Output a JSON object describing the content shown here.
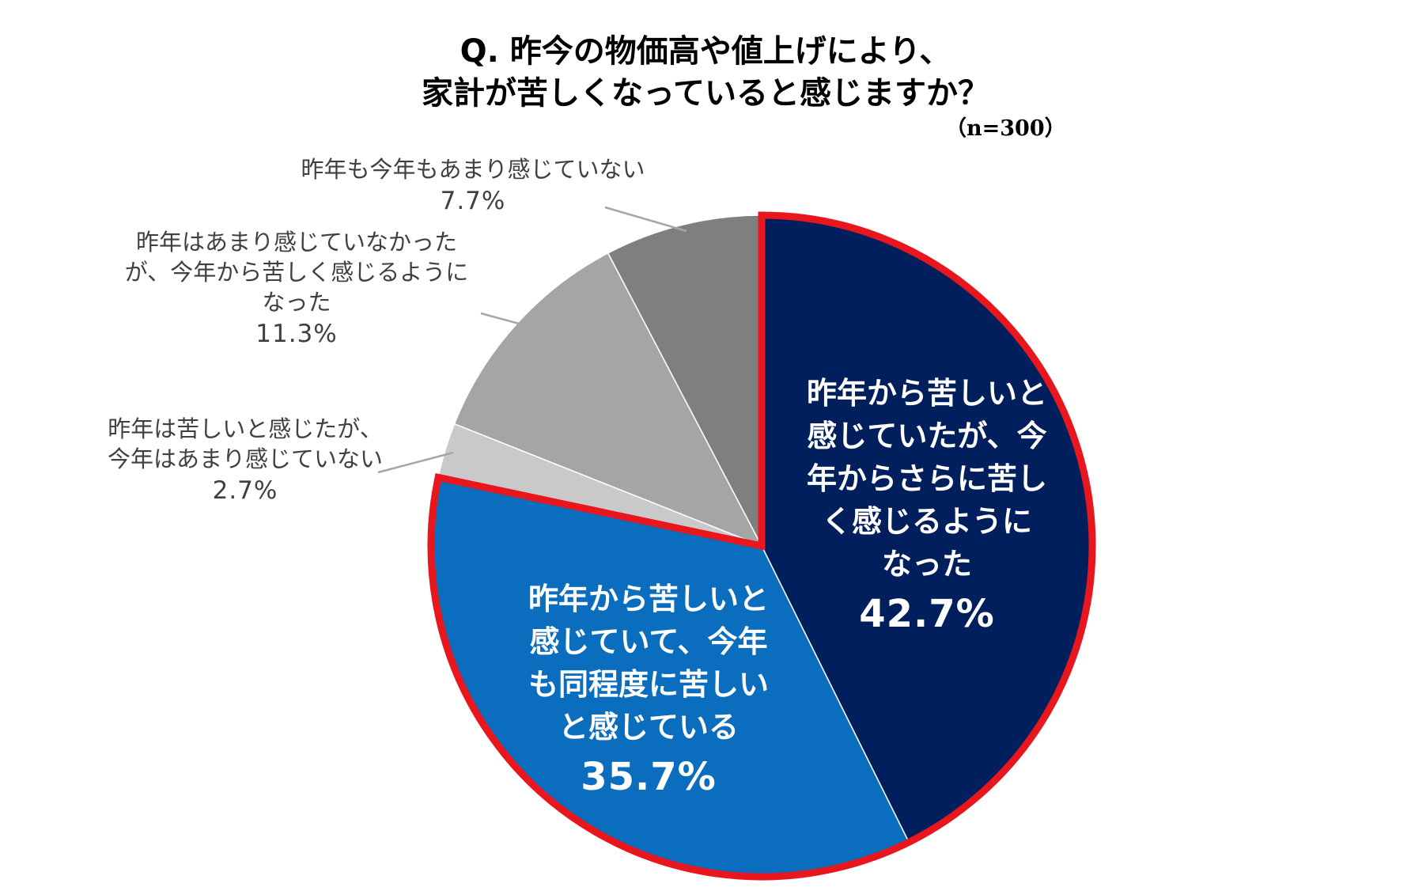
{
  "title": {
    "line1": "Q. 昨今の物価高や値上げにより、",
    "line2": "家計が苦しくなっていると感じますか？",
    "sample": "（n=300）"
  },
  "chart_data": {
    "type": "pie",
    "title": "Q. 昨今の物価高や値上げにより、家計が苦しくなっていると感じますか？",
    "slices": [
      {
        "label_lines": [
          "昨年から苦しいと",
          "感じていたが、今",
          "年からさらに苦し",
          "く感じるように",
          "なった"
        ],
        "value": 42.7,
        "value_label": "42.7%",
        "color": "#001f5c",
        "highlighted": true
      },
      {
        "label_lines": [
          "昨年から苦しいと",
          "感じていて、今年",
          "も同程度に苦しい",
          "と感じている"
        ],
        "value": 35.7,
        "value_label": "35.7%",
        "color": "#0a6dbd",
        "highlighted": true
      },
      {
        "label_lines": [
          "昨年は苦しいと感じたが、",
          "今年はあまり感じていない"
        ],
        "value": 2.7,
        "value_label": "2.7%",
        "color": "#c9c9c9",
        "highlighted": false
      },
      {
        "label_lines": [
          "昨年はあまり感じていなかった",
          "が、今年から苦しく感じるように",
          "なった"
        ],
        "value": 11.3,
        "value_label": "11.3%",
        "color": "#a5a5a5",
        "highlighted": false
      },
      {
        "label_lines": [
          "昨年も今年もあまり感じていない"
        ],
        "value": 7.7,
        "value_label": "7.7%",
        "color": "#7f7f7f",
        "highlighted": false
      }
    ],
    "start_angle": "12 o'clock",
    "direction": "clockwise",
    "highlight_border_color": "#e8161d",
    "leader_line_color": "#a6a6a6",
    "outside_text_color": "#404040",
    "inside_text_color": "#ffffff"
  }
}
